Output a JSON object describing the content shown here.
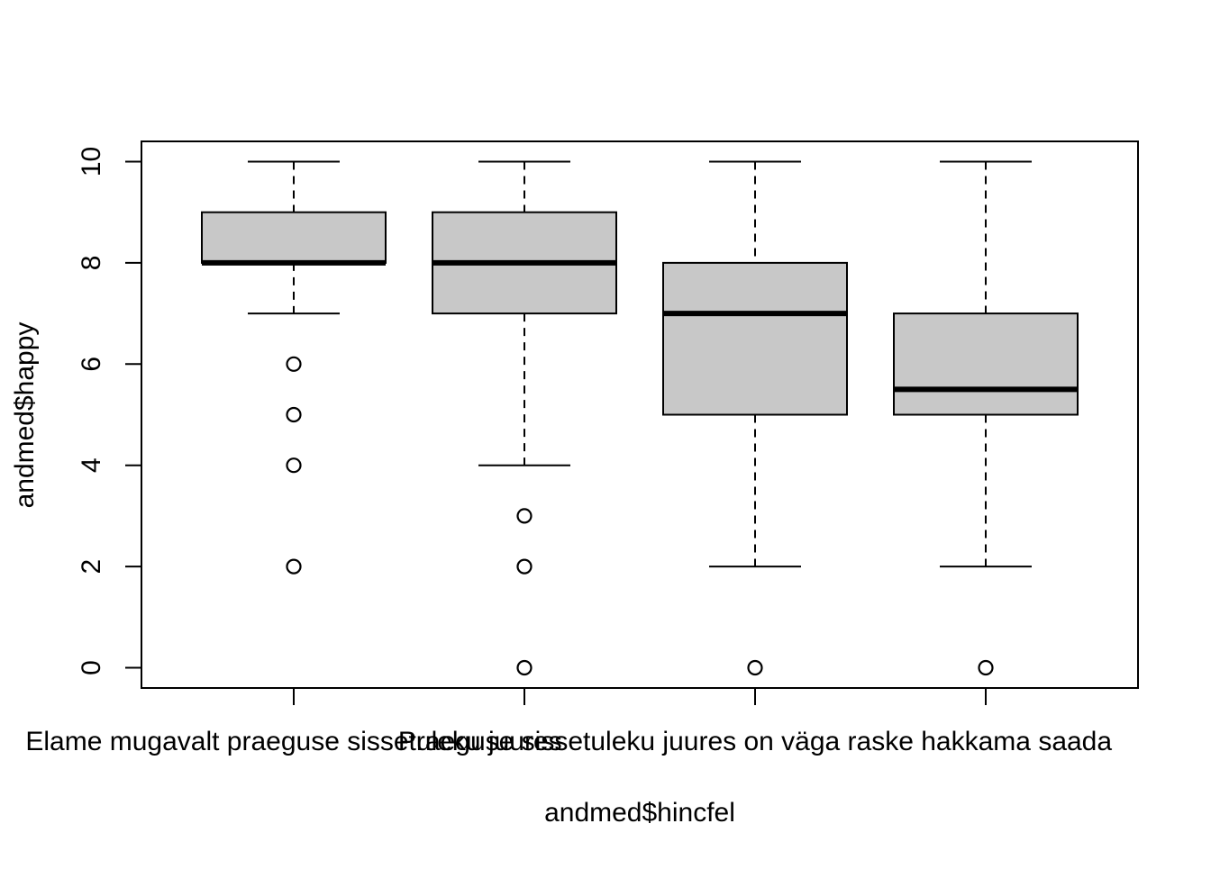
{
  "chart_data": {
    "type": "boxplot",
    "title": "",
    "xlabel": "andmed$hincfel",
    "ylabel": "andmed$happy",
    "ylim": [
      -0.4,
      10.4
    ],
    "yticks": [
      0,
      2,
      4,
      6,
      8,
      10
    ],
    "grid": false,
    "box_fill": "#c8c8c8",
    "categories": [
      "Elame mugavalt praeguse sissetuleku juures",
      "",
      "Praeguse sissetuleku juures on väga raske hakkama saada",
      ""
    ],
    "boxes": [
      {
        "whisker_low": 7,
        "q1": 8,
        "median": 8,
        "q3": 9,
        "whisker_high": 10,
        "outliers": [
          6,
          5,
          4,
          2
        ]
      },
      {
        "whisker_low": 4,
        "q1": 7,
        "median": 8,
        "q3": 9,
        "whisker_high": 10,
        "outliers": [
          3,
          2,
          0
        ]
      },
      {
        "whisker_low": 2,
        "q1": 5,
        "median": 7,
        "q3": 8,
        "whisker_high": 10,
        "outliers": [
          0
        ]
      },
      {
        "whisker_low": 2,
        "q1": 5,
        "median": 5.5,
        "q3": 7,
        "whisker_high": 10,
        "outliers": [
          0
        ]
      }
    ]
  }
}
